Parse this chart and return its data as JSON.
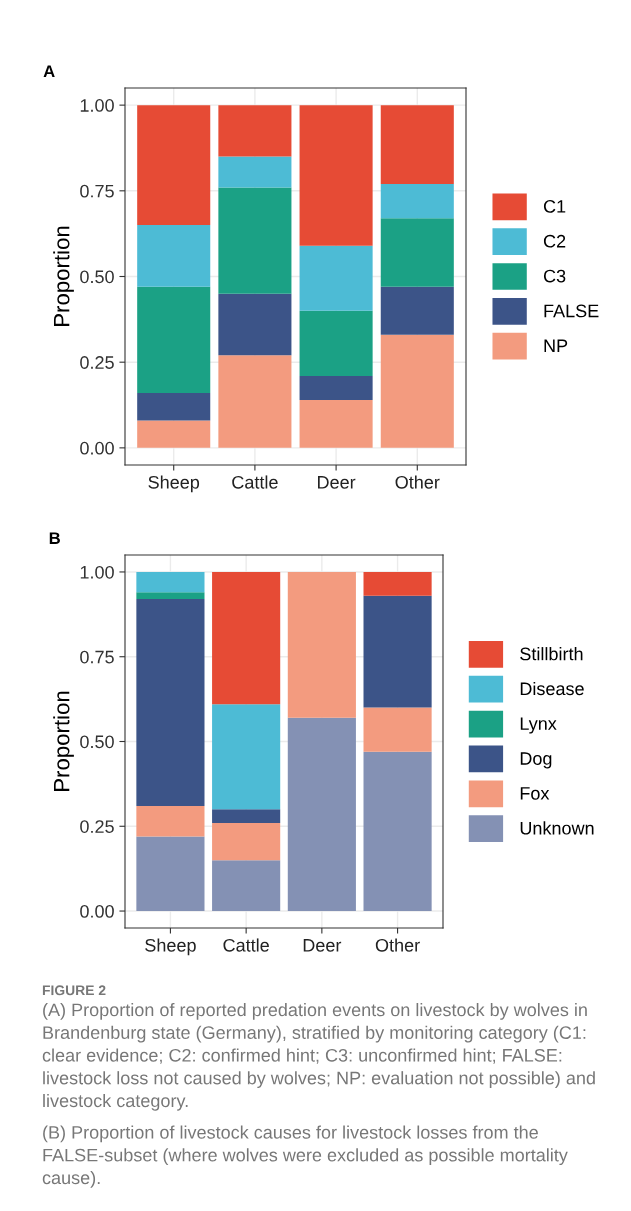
{
  "chart_data": [
    {
      "type": "bar",
      "stacked": true,
      "title": "A",
      "ylabel": "Proportion",
      "categories": [
        "Sheep",
        "Cattle",
        "Deer",
        "Other"
      ],
      "series": [
        {
          "name": "NP",
          "color": "#f39b7f",
          "values": [
            0.08,
            0.27,
            0.14,
            0.33
          ]
        },
        {
          "name": "FALSE",
          "color": "#3c5488",
          "values": [
            0.08,
            0.18,
            0.07,
            0.14
          ]
        },
        {
          "name": "C3",
          "color": "#1ba185",
          "values": [
            0.31,
            0.31,
            0.19,
            0.2
          ]
        },
        {
          "name": "C2",
          "color": "#4dbbd5",
          "values": [
            0.18,
            0.09,
            0.19,
            0.1
          ]
        },
        {
          "name": "C1",
          "color": "#e64b35",
          "values": [
            0.35,
            0.15,
            0.41,
            0.23
          ]
        }
      ],
      "ylim": [
        -0.05,
        1.05
      ],
      "yticks": [
        {
          "value": 0,
          "label": "0.00"
        },
        {
          "value": 0.25,
          "label": "0.25"
        },
        {
          "value": 0.5,
          "label": "0.50"
        },
        {
          "value": 0.75,
          "label": "0.75"
        },
        {
          "value": 1,
          "label": "1.00"
        }
      ],
      "grid": true,
      "legend": "right"
    },
    {
      "type": "bar",
      "stacked": true,
      "title": "B",
      "ylabel": "Proportion",
      "categories": [
        "Sheep",
        "Cattle",
        "Deer",
        "Other"
      ],
      "series": [
        {
          "name": "Unknown",
          "color": "#8491b4",
          "values": [
            0.22,
            0.15,
            0.57,
            0.47
          ]
        },
        {
          "name": "Fox",
          "color": "#f39b7f",
          "values": [
            0.09,
            0.11,
            0.43,
            0.13
          ]
        },
        {
          "name": "Dog",
          "color": "#3c5488",
          "values": [
            0.61,
            0.04,
            0,
            0.33
          ]
        },
        {
          "name": "Lynx",
          "color": "#1ba185",
          "values": [
            0.02,
            0,
            0,
            0
          ]
        },
        {
          "name": "Disease",
          "color": "#4dbbd5",
          "values": [
            0.06,
            0.31,
            0,
            0
          ]
        },
        {
          "name": "Stillbirth",
          "color": "#e64b35",
          "values": [
            0,
            0.39,
            0,
            0.07
          ]
        }
      ],
      "ylim": [
        -0.05,
        1.05
      ],
      "yticks": [
        {
          "value": 0,
          "label": "0.00"
        },
        {
          "value": 0.25,
          "label": "0.25"
        },
        {
          "value": 0.5,
          "label": "0.50"
        },
        {
          "value": 0.75,
          "label": "0.75"
        },
        {
          "value": 1,
          "label": "1.00"
        }
      ],
      "grid": true,
      "legend": "right",
      "annotations": [
        "FIGURE 2",
        "(A) Proportion of reported predation events on livestock by wolves in Brandenburg state (Germany), stratified by monitoring category (C1: clear evidence; C2: confirmed hint; C3: unconfirmed hint; FALSE: livestock loss not caused by wolves; NP: evaluation not possible) and livestock category.",
        "(B) Proportion of livestock causes for livestock losses from the FALSE-subset (where wolves were excluded as possible mortality cause)."
      ]
    }
  ]
}
